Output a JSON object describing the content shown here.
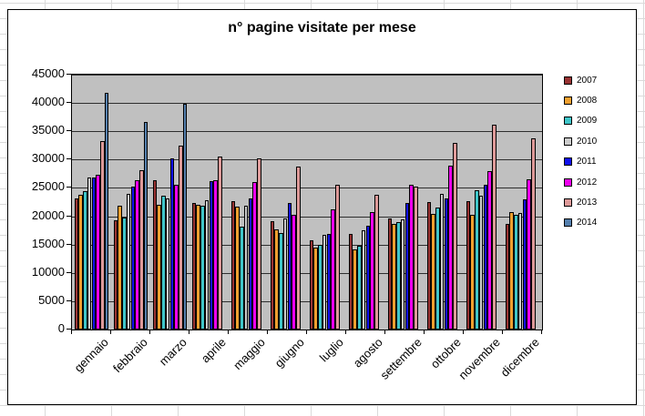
{
  "chart_data": {
    "type": "bar",
    "title": "n° pagine visitate per mese",
    "categories": [
      "gennaio",
      "febbraio",
      "marzo",
      "aprile",
      "maggio",
      "giugno",
      "luglio",
      "agosto",
      "settembre",
      "ottobre",
      "novembre",
      "dicembre"
    ],
    "series": [
      {
        "name": "2007",
        "color": "#993333",
        "values": [
          23100,
          19300,
          26400,
          22400,
          22600,
          19200,
          15700,
          16900,
          19600,
          22500,
          22700,
          18700
        ]
      },
      {
        "name": "2008",
        "color": "#efa02f",
        "values": [
          23800,
          21900,
          22000,
          22100,
          21700,
          17700,
          14500,
          14100,
          18600,
          20400,
          20300,
          20800
        ]
      },
      {
        "name": "2009",
        "color": "#3fc6c9",
        "values": [
          24500,
          19700,
          23600,
          21900,
          18100,
          17000,
          15000,
          14800,
          19000,
          21500,
          24600,
          20200
        ]
      },
      {
        "name": "2010",
        "color": "#cccccc",
        "values": [
          26800,
          23900,
          23200,
          22800,
          21900,
          19600,
          16700,
          17600,
          19400,
          23900,
          23600,
          20500
        ]
      },
      {
        "name": "2011",
        "color": "#1111ee",
        "values": [
          26900,
          25200,
          30300,
          26200,
          23200,
          22300,
          16900,
          18300,
          22300,
          23100,
          25600,
          23000
        ]
      },
      {
        "name": "2012",
        "color": "#ee00ee",
        "values": [
          27400,
          26300,
          25600,
          26400,
          26100,
          20200,
          21300,
          20700,
          25600,
          28900,
          28000,
          26500
        ]
      },
      {
        "name": "2013",
        "color": "#de9a99",
        "values": [
          33300,
          28200,
          32400,
          30500,
          30300,
          28800,
          25500,
          23800,
          25200,
          33000,
          36200,
          33800
        ]
      },
      {
        "name": "2014",
        "color": "#5580ae",
        "values": [
          41800,
          36600,
          39800,
          null,
          null,
          null,
          null,
          null,
          null,
          null,
          null,
          null
        ]
      }
    ],
    "ylim": [
      0,
      45000
    ],
    "ytick_step": 5000,
    "yticks": [
      "45000",
      "40000",
      "35000",
      "30000",
      "25000",
      "20000",
      "15000",
      "10000",
      "5000",
      "0"
    ],
    "grid": true,
    "legend_position": "right",
    "plot_background": "#c0c0c0",
    "chart_background": "#ffffff"
  }
}
